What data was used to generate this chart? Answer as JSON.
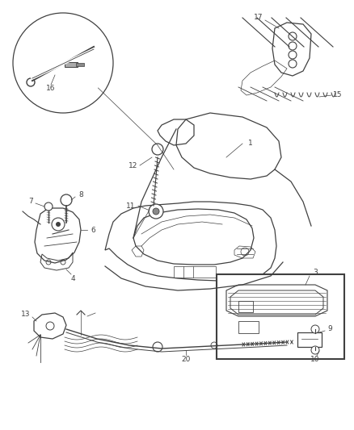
{
  "bg_color": "#ffffff",
  "line_color": "#404040",
  "figsize": [
    4.38,
    5.33
  ],
  "dpi": 100,
  "lw_main": 0.9,
  "lw_thin": 0.5,
  "lw_med": 0.7,
  "font_size": 6.5
}
